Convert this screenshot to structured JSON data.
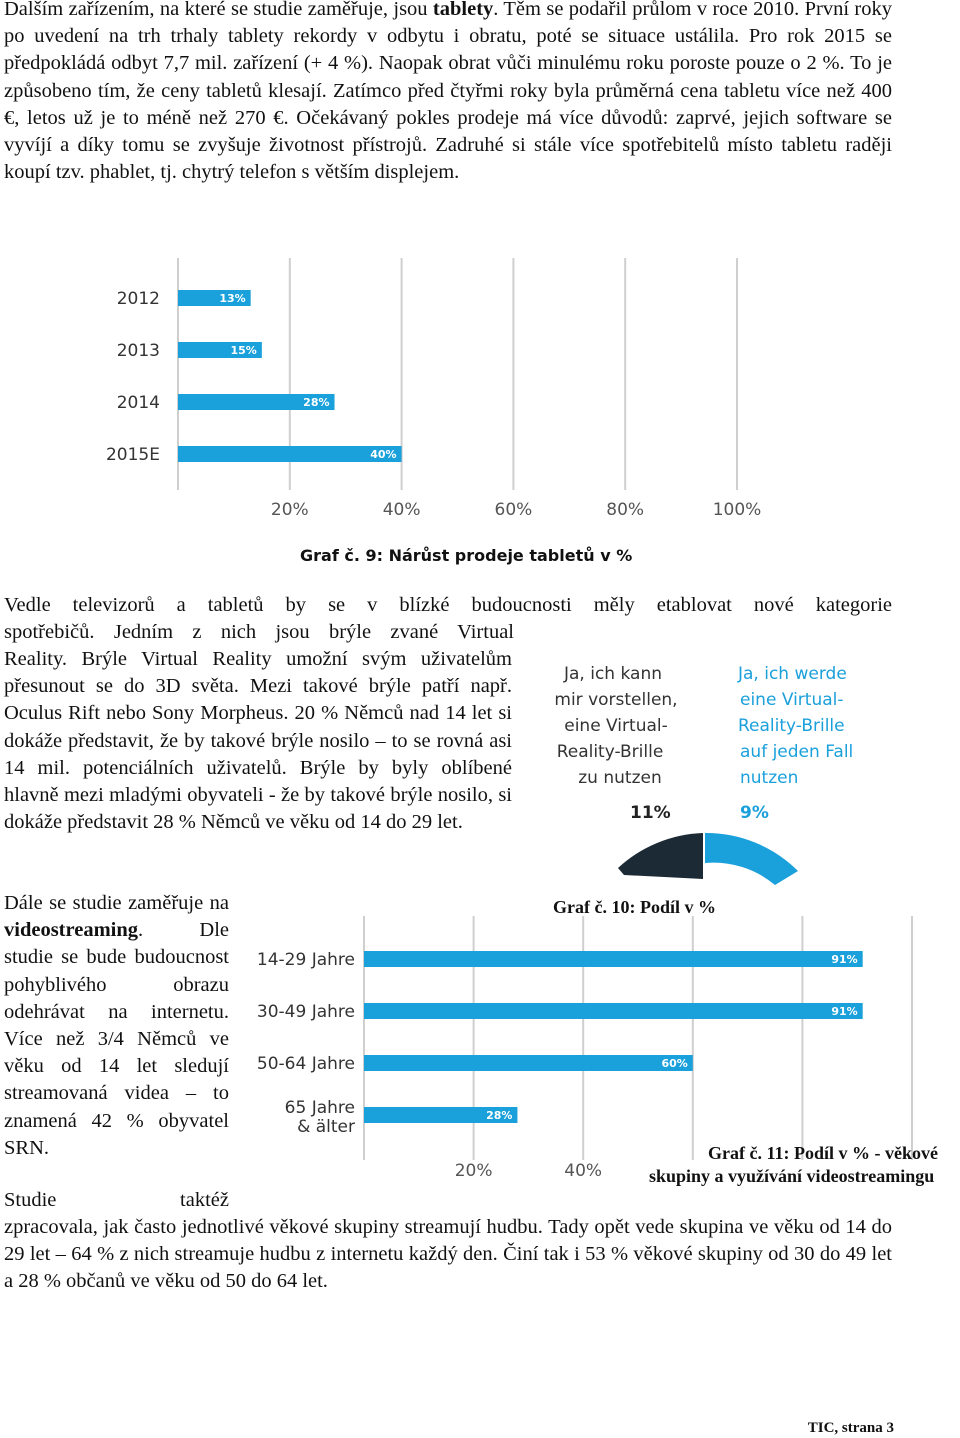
{
  "p1": {
    "a": "Dalším zařízením, na které se studie zaměřuje, jsou ",
    "b": "tablety",
    "c": ". Těm se podařil průlom v roce 2010. První roky po uvedení na trh trhaly tablety rekordy v odbytu i obratu, poté se situace ustálila. Pro rok 2015 se předpokládá odbyt 7,7 mil. zařízení (+ 4 %). Naopak obrat vůči minulému roku poroste pouze o 2 %. To je způsobeno tím, že ceny tabletů klesají. Zatímco před čtyřmi roky byla průměrná cena tabletu více než 400 €, letos už je to méně než 270 €. Očekávaný pokles prodeje má více důvodů: zaprvé, jejich software se vyvíjí a díky tomu se zvyšuje životnost přístrojů. Zadruhé si stále více spotřebitelů místo tabletu raději koupí tzv. phablet, tj. chytrý telefon s větším displejem."
  },
  "p2": {
    "line1": "Vedle televizorů a tabletů by se v blízké budoucnosti měly etablovat nové kategorie",
    "line2": "spotřebičů. Jedním z nich jsou brýle zvané Virtual",
    "rest": "Reality. Brýle Virtual Reality umožní svým uživatelům přesunout se do 3D světa. Mezi takové brýle patří např. Oculus Rift nebo Sony Morpheus. 20 % Němců nad 14 let si dokáže představit, že by takové brýle nosilo – to se rovná asi 14 mil. potenciálních uživatelů. Brýle by byly oblíbené hlavně mezi mladými obyvateli - že by takové brýle nosilo, si dokáže představit 28 % Němců ve věku od 14 do 29 let."
  },
  "p3": {
    "a": "Dále se studie zaměřuje na ",
    "b": "videostreaming",
    "c": ". Dle studie se bude budoucnost pohyblivého obrazu odehrávat na internetu. Více než 3/4 Němců ve věku od 14 let sledují streamovaná videa – to znamená 42 % obyvatel SRN.",
    "d": "Studie taktéž",
    "e": "zpracovala, jak často jednotlivé věkové skupiny streamují hudbu. Tady opět vede skupina ve věku od 14 do 29 let – 64 % z nich streamuje hudbu z internetu každý den. Činí tak i 53 % věkové skupiny od 30 do 49 let a 28 % občanů ve věku od 50 do 64 let."
  },
  "captions": {
    "graf9": "Graf č. 9: Nárůst prodeje tabletů v %",
    "graf10": "Graf č. 10: Podíl v %",
    "graf11_line1": "Graf č. 11: Podíl v % - věkové",
    "graf11_line2": "skupiny a využívání videostreamingu"
  },
  "footer": "TIC, strana 3",
  "colors": {
    "bar": "#1aa0db",
    "dark": "#1c2a35",
    "grid": "#cfcfcf",
    "axis_text": "#555555"
  },
  "chart_data": [
    {
      "type": "bar",
      "orientation": "horizontal",
      "categories": [
        "2012",
        "2013",
        "2014",
        "2015E"
      ],
      "values": [
        13,
        15,
        28,
        40
      ],
      "value_labels": [
        "13%",
        "15%",
        "28%",
        "40%"
      ],
      "tick_labels": [
        "20%",
        "40%",
        "60%",
        "80%",
        "100%"
      ],
      "xlim": [
        0,
        100
      ],
      "grid": true
    },
    {
      "type": "pie",
      "categories": [
        "Ja, ich kann mir vorstellen, eine Virtual-Reality-Brille zu nutzen",
        "Ja, ich werde eine Virtual-Reality-Brille auf jeden Fall nutzen"
      ],
      "values": [
        11,
        9
      ],
      "value_labels": [
        "11%",
        "9%"
      ]
    },
    {
      "type": "bar",
      "orientation": "horizontal",
      "categories": [
        "14-29 Jahre",
        "30-49 Jahre",
        "50-64 Jahre",
        "65 Jahre & älter"
      ],
      "values": [
        91,
        91,
        60,
        28
      ],
      "value_labels": [
        "91%",
        "91%",
        "60%",
        "28%"
      ],
      "tick_labels": [
        "20%",
        "40%"
      ],
      "xlim": [
        0,
        100
      ],
      "grid": true
    }
  ]
}
